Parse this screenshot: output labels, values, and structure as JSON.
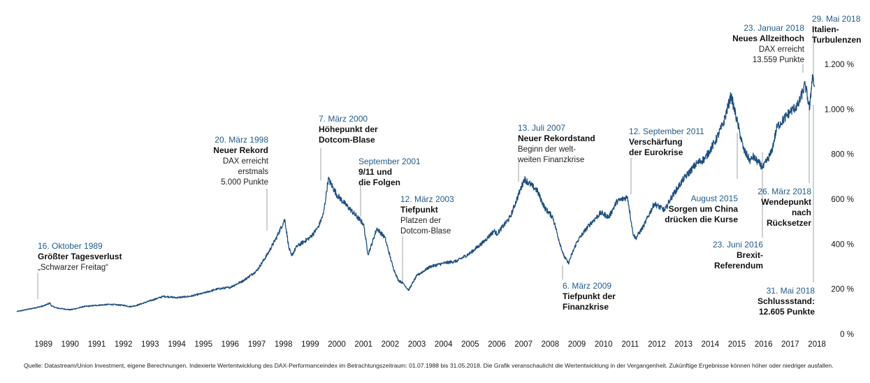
{
  "chart_data": {
    "type": "line",
    "title": "",
    "xlabel": "",
    "ylabel": "",
    "xlim": [
      1988.5,
      2018.42
    ],
    "ylim": [
      0,
      1200
    ],
    "y_ticks": [
      {
        "value": 0,
        "label": "0 %"
      },
      {
        "value": 200,
        "label": "200 %"
      },
      {
        "value": 400,
        "label": "400 %"
      },
      {
        "value": 600,
        "label": "600 %"
      },
      {
        "value": 800,
        "label": "800 %"
      },
      {
        "value": 1000,
        "label": "1.000 %"
      },
      {
        "value": 1200,
        "label": "1.200 %"
      }
    ],
    "x_ticks": [
      "1989",
      "1990",
      "1991",
      "1992",
      "1993",
      "1994",
      "1995",
      "1996",
      "1997",
      "1998",
      "1999",
      "2000",
      "2001",
      "2002",
      "2003",
      "2004",
      "2005",
      "2006",
      "2007",
      "2008",
      "2009",
      "2010",
      "2011",
      "2012",
      "2013",
      "2014",
      "2015",
      "2016",
      "2017",
      "2018"
    ],
    "series": [
      {
        "name": "DAX-Performanceindex (indexiert)",
        "color": "#1d4f82",
        "x": [
          1988.5,
          1989.0,
          1989.5,
          1989.75,
          1989.79,
          1990.0,
          1990.5,
          1990.75,
          1991.0,
          1991.5,
          1992.0,
          1992.5,
          1992.75,
          1993.0,
          1993.5,
          1994.0,
          1994.5,
          1995.0,
          1995.5,
          1996.0,
          1996.5,
          1997.0,
          1997.5,
          1997.9,
          1998.22,
          1998.55,
          1998.7,
          1998.8,
          1999.0,
          1999.5,
          1999.8,
          2000.0,
          2000.18,
          2000.5,
          2000.8,
          2001.0,
          2001.5,
          2001.67,
          2001.75,
          2002.0,
          2002.3,
          2002.6,
          2002.8,
          2003.0,
          2003.19,
          2003.5,
          2004.0,
          2004.5,
          2005.0,
          2005.5,
          2006.0,
          2006.4,
          2006.5,
          2007.0,
          2007.53,
          2007.9,
          2008.0,
          2008.3,
          2008.6,
          2008.8,
          2009.0,
          2009.18,
          2009.5,
          2009.8,
          2010.0,
          2010.4,
          2010.7,
          2011.0,
          2011.4,
          2011.6,
          2011.7,
          2012.0,
          2012.4,
          2012.8,
          2013.0,
          2013.5,
          2014.0,
          2014.3,
          2014.7,
          2015.0,
          2015.28,
          2015.6,
          2015.75,
          2016.0,
          2016.1,
          2016.48,
          2016.8,
          2017.0,
          2017.5,
          2017.8,
          2018.06,
          2018.23,
          2018.33,
          2018.41
        ],
        "values": [
          100,
          112,
          125,
          138,
          126,
          116,
          108,
          114,
          122,
          128,
          132,
          128,
          122,
          128,
          148,
          168,
          162,
          168,
          182,
          200,
          208,
          238,
          282,
          355,
          425,
          510,
          385,
          348,
          390,
          430,
          475,
          535,
          690,
          620,
          580,
          555,
          490,
          355,
          380,
          470,
          430,
          300,
          240,
          225,
          195,
          260,
          300,
          315,
          325,
          360,
          410,
          460,
          445,
          520,
          690,
          650,
          640,
          560,
          520,
          430,
          350,
          315,
          410,
          460,
          490,
          540,
          520,
          590,
          610,
          450,
          425,
          480,
          580,
          550,
          600,
          690,
          760,
          780,
          860,
          940,
          1062,
          900,
          820,
          770,
          790,
          740,
          810,
          920,
          990,
          1020,
          1110,
          1000,
          1155,
          1100
        ]
      }
    ],
    "annotations": [
      {
        "date": "16. Oktober 1989",
        "title": "Größter Tagesverlust",
        "text": [
          "„Schwarzer Freitag“"
        ]
      },
      {
        "date": "20. März 1998",
        "title": "Neuer Rekord",
        "text": [
          "DAX erreicht",
          "erstmals",
          "5.000 Punkte"
        ]
      },
      {
        "date": "7. März 2000",
        "title": "Höhepunkt der Dotcom-Blase",
        "text": []
      },
      {
        "date": "September 2001",
        "title": "9/11 und die Folgen",
        "text": []
      },
      {
        "date": "12. März 2003",
        "title": "Tiefpunkt",
        "text": [
          "Platzen der",
          "Dotcom-Blase"
        ]
      },
      {
        "date": "13. Juli 2007",
        "title": "Neuer Rekordstand",
        "text": [
          "Beginn der welt-",
          "weiten Finanzkrise"
        ]
      },
      {
        "date": "6. März 2009",
        "title": "Tiefpunkt der Finanzkrise",
        "text": []
      },
      {
        "date": "12. September 2011",
        "title": "Verschärfung der Eurokrise",
        "text": []
      },
      {
        "date": "August 2015",
        "title": "Sorgen um China drücken die Kurse",
        "text": []
      },
      {
        "date": "23. Juni 2016",
        "title": "Brexit-Referendum",
        "text": []
      },
      {
        "date": "23. Januar 2018",
        "title": "Neues Allzeithoch",
        "text": [
          "DAX erreicht",
          "13.559 Punkte"
        ]
      },
      {
        "date": "29. Mai 2018",
        "title": "Italien-Turbulenzen",
        "text": []
      },
      {
        "date": "26. März 2018",
        "title": "Wendepunkt nach Rücksetzer",
        "text": []
      },
      {
        "date": "31. Mai 2018",
        "title": "Schlussstand: 12.605 Punkte",
        "text": []
      }
    ]
  },
  "labels": {
    "a1989_date": "16. Oktober 1989",
    "a1989_title": "Größter Tagesverlust",
    "a1989_sub1": "„Schwarzer Freitag“",
    "a1998_date": "20. März 1998",
    "a1998_title": "Neuer Rekord",
    "a1998_sub1": "DAX erreicht",
    "a1998_sub2": "erstmals",
    "a1998_sub3": "5.000 Punkte",
    "a2000_date": "7. März 2000",
    "a2000_title1": "Höhepunkt der",
    "a2000_title2": "Dotcom-Blase",
    "a2001_date": "September 2001",
    "a2001_title1": "9/11 und",
    "a2001_title2": "die Folgen",
    "a2003_date": "12. März 2003",
    "a2003_title": "Tiefpunkt",
    "a2003_sub1": "Platzen der",
    "a2003_sub2": "Dotcom-Blase",
    "a2007_date": "13. Juli 2007",
    "a2007_title": "Neuer Rekordstand",
    "a2007_sub1": "Beginn der welt-",
    "a2007_sub2": "weiten Finanzkrise",
    "a2009_date": "6. März 2009",
    "a2009_title1": "Tiefpunkt der",
    "a2009_title2": "Finanzkrise",
    "a2011_date": "12. September 2011",
    "a2011_title1": "Verschärfung",
    "a2011_title2": "der Eurokrise",
    "a2015_date": "August 2015",
    "a2015_title1": "Sorgen um China",
    "a2015_title2": "drücken die Kurse",
    "a2016_date": "23. Juni 2016",
    "a2016_title1": "Brexit-",
    "a2016_title2": "Referendum",
    "a2018jan_date": "23. Januar 2018",
    "a2018jan_title": "Neues Allzeithoch",
    "a2018jan_sub1": "DAX erreicht",
    "a2018jan_sub2": "13.559 Punkte",
    "a2018may_date": "29. Mai 2018",
    "a2018may_title1": "Italien-",
    "a2018may_title2": "Turbulenzen",
    "a2018mar_date": "26. März 2018",
    "a2018mar_title1": "Wendepunkt",
    "a2018mar_title2": "nach",
    "a2018mar_title3": "Rücksetzer",
    "a2018end_date": "31. Mai 2018",
    "a2018end_title1": "Schlussstand:",
    "a2018end_title2": "12.605 Punkte"
  },
  "source": "Quelle: Datastream/Union Investment, eigene Berechnungen. Indexierte Wertentwicklung des DAX-Performanceindex im Betrachtungszeitraum: 01.07.1988 bis 31.05.2018. Die Grafik veranschaulicht die Wertentwicklung in der Vergangenheit. Zukünftige Ergebnisse können höher oder niedriger ausfallen."
}
